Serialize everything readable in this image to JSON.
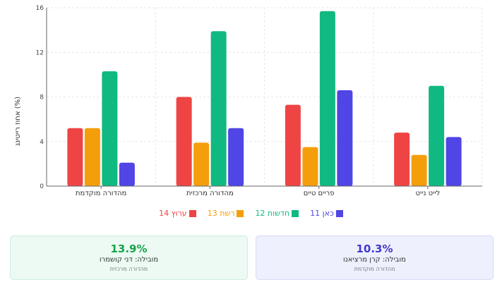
{
  "chart_data": {
    "type": "bar",
    "ylabel": "אחוז רייטינג (%)",
    "ylim": [
      0,
      16
    ],
    "yticks": [
      0,
      4,
      8,
      12,
      16
    ],
    "grid": true,
    "legend_position": "bottom",
    "categories": [
      "לייט נייט",
      "פריים טיים",
      "מהדורה מרכזית",
      "מהדורה מוקדמת"
    ],
    "series": [
      {
        "name": "כאן 11",
        "color": "#4f46e5",
        "values": [
          4.4,
          8.6,
          5.2,
          2.1
        ]
      },
      {
        "name": "חדשות 12",
        "color": "#10b981",
        "values": [
          9.0,
          15.7,
          13.9,
          10.3
        ]
      },
      {
        "name": "רשת 13",
        "color": "#f59e0b",
        "values": [
          2.8,
          3.5,
          3.9,
          5.2
        ]
      },
      {
        "name": "ערוץ 14",
        "color": "#ef4444",
        "values": [
          4.8,
          7.3,
          8.0,
          5.2
        ]
      }
    ]
  },
  "cards": {
    "left": {
      "value": "13.9%",
      "label": "מובילה: דני קושמרו",
      "sub": "מהדורה מרכזית",
      "color": "#16a34a"
    },
    "right": {
      "value": "10.3%",
      "label": "מובילה: קרן מרציאנו",
      "sub": "מהדורה מוקדמת",
      "color": "#4338ca"
    }
  }
}
